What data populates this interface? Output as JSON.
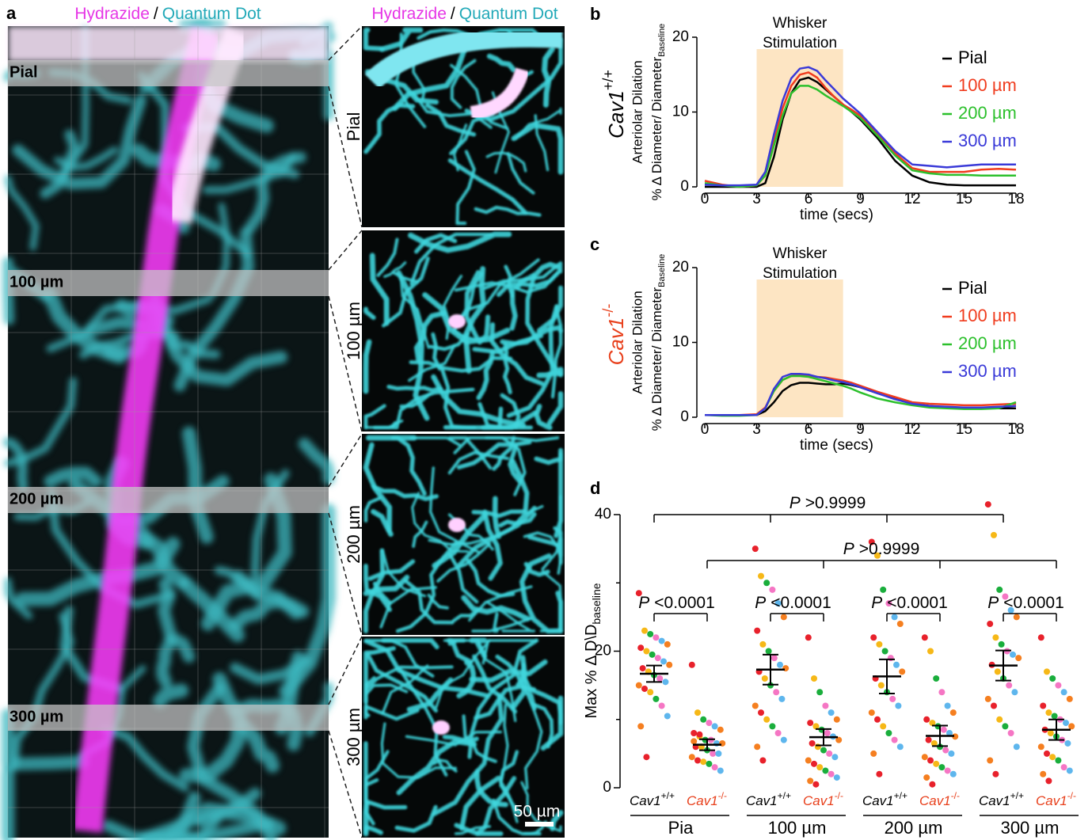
{
  "panel_a": {
    "label": "a",
    "headers": [
      {
        "left": "Hydrazide",
        "sep": "/",
        "right": "Quantum Dot"
      },
      {
        "left": "Hydrazide",
        "sep": "/",
        "right": "Quantum Dot"
      }
    ],
    "depths": [
      "Pial",
      "100 µm",
      "200 µm",
      "300 µm"
    ],
    "scale_bar": "50 µm"
  },
  "chart_data": [
    {
      "type": "line",
      "label": "b",
      "row_label": "Cav1",
      "row_sup": "+/+",
      "row_color": "#000000",
      "ylabel": [
        "Arteriolar Dilation",
        "% Δ Diameter/ Diameter"
      ],
      "ylabel_sub": "Baseline",
      "xlabel": "time (secs)",
      "stimulation": {
        "text": [
          "Whisker",
          "Stimulation"
        ],
        "start": 3,
        "end": 8,
        "color": "#fde5c3"
      },
      "xlim": [
        0,
        18
      ],
      "xticks": [
        0,
        3,
        6,
        9,
        12,
        15,
        18
      ],
      "ylim": [
        0,
        20
      ],
      "yticks": [
        0,
        10,
        20
      ],
      "x": [
        0,
        1,
        2,
        3,
        3.5,
        4,
        4.5,
        5,
        5.5,
        6,
        6.5,
        7,
        7.5,
        8,
        8.5,
        9,
        10,
        11,
        12,
        13,
        14,
        15,
        16,
        17,
        18
      ],
      "series": [
        {
          "name": "Pial",
          "color": "#000000",
          "values": [
            0,
            0,
            0,
            0,
            0.5,
            4,
            9,
            12.5,
            14.3,
            14.6,
            14,
            13,
            12,
            11,
            10,
            9,
            6.5,
            3.5,
            1.5,
            0.6,
            0.3,
            0.2,
            0.2,
            0.2,
            0.2
          ]
        },
        {
          "name": "100 µm",
          "color": "#f03c1e",
          "values": [
            0.8,
            0.3,
            0,
            0.2,
            1.5,
            6,
            10.5,
            13.5,
            15,
            15.3,
            14.6,
            13.2,
            12,
            11,
            10.3,
            9.5,
            7,
            4.5,
            2.5,
            2,
            2,
            2,
            2.3,
            2.4,
            2.3
          ]
        },
        {
          "name": "200 µm",
          "color": "#2cc02c",
          "values": [
            0.5,
            0.2,
            0,
            0.2,
            1.5,
            5.5,
            9.5,
            12.5,
            13.5,
            13.5,
            13,
            12.2,
            11.5,
            10.8,
            10,
            9.2,
            6.8,
            4.2,
            2.2,
            1.8,
            1.6,
            1.6,
            1.5,
            1.5,
            1.5
          ]
        },
        {
          "name": "300 µm",
          "color": "#3a3ad8",
          "values": [
            0.3,
            0.2,
            0.2,
            0.3,
            2,
            7,
            11.5,
            14.5,
            15.8,
            16,
            15.5,
            14.2,
            13,
            11.8,
            10.8,
            9.8,
            7.3,
            4.8,
            3,
            2.8,
            2.6,
            2.8,
            3,
            3,
            3
          ]
        }
      ]
    },
    {
      "type": "line",
      "label": "c",
      "row_label": "Cav1",
      "row_sup": "-/-",
      "row_color": "#e8401c",
      "ylabel": [
        "Arteriolar Dilation",
        "% Δ Diameter/ Diameter"
      ],
      "ylabel_sub": "Baseline",
      "xlabel": "time (secs)",
      "stimulation": {
        "text": [
          "Whisker",
          "Stimulation"
        ],
        "start": 3,
        "end": 8,
        "color": "#fde5c3"
      },
      "xlim": [
        0,
        18
      ],
      "xticks": [
        0,
        3,
        6,
        9,
        12,
        15,
        18
      ],
      "ylim": [
        0,
        20
      ],
      "yticks": [
        0,
        10,
        20
      ],
      "x": [
        0,
        1,
        2,
        3,
        3.5,
        4,
        4.5,
        5,
        5.5,
        6,
        6.5,
        7,
        7.5,
        8,
        8.5,
        9,
        10,
        11,
        12,
        13,
        14,
        15,
        16,
        17,
        18
      ],
      "series": [
        {
          "name": "Pial",
          "color": "#000000",
          "values": [
            0.3,
            0.3,
            0.3,
            0.3,
            0.8,
            2,
            3.5,
            4.3,
            4.6,
            4.6,
            4.5,
            4.4,
            4.4,
            4.5,
            4.3,
            4,
            3.2,
            2.5,
            1.8,
            1.5,
            1.3,
            1.2,
            1.2,
            1.2,
            1.2
          ]
        },
        {
          "name": "100 µm",
          "color": "#f03c1e",
          "values": [
            0.3,
            0.3,
            0.3,
            0.4,
            1.3,
            3.5,
            5,
            5.5,
            5.6,
            5.6,
            5.4,
            5.3,
            5.1,
            4.9,
            4.6,
            4.2,
            3.4,
            2.7,
            2,
            1.8,
            1.7,
            1.6,
            1.6,
            1.7,
            1.8
          ]
        },
        {
          "name": "200 µm",
          "color": "#2cc02c",
          "values": [
            0.3,
            0.2,
            0.2,
            0.3,
            1.2,
            3.5,
            5,
            5.5,
            5.5,
            5.4,
            5.1,
            4.8,
            4.5,
            4.2,
            3.8,
            3.3,
            2.5,
            2,
            1.6,
            1.3,
            1.2,
            1.1,
            1.1,
            1.2,
            2
          ]
        },
        {
          "name": "300 µm",
          "color": "#3a3ad8",
          "values": [
            0.3,
            0.3,
            0.3,
            0.3,
            1.2,
            3.8,
            5.4,
            5.8,
            5.8,
            5.7,
            5.4,
            5.2,
            4.9,
            4.7,
            4.4,
            4,
            3.2,
            2.4,
            1.8,
            1.5,
            1.4,
            1.3,
            1.3,
            1.4,
            1.5
          ]
        }
      ]
    },
    {
      "type": "scatter",
      "label": "d",
      "ylabel": "Max % Δ D\\D",
      "ylabel_sub": "baseline",
      "ylim": [
        0,
        40
      ],
      "yticks": [
        0,
        20,
        40
      ],
      "minor_yticks": [
        10,
        30
      ],
      "groups": [
        "Pia",
        "100 µm",
        "200 µm",
        "300 µm"
      ],
      "genotypes": [
        {
          "name": "Cav1",
          "sup": "+/+",
          "color": "#000000"
        },
        {
          "name": "Cav1",
          "sup": "-/-",
          "color": "#e8401c"
        }
      ],
      "palette": [
        "#e8212b",
        "#f6b817",
        "#1aae3c",
        "#f576c4",
        "#5eb6ed",
        "#f57f20"
      ],
      "points": [
        [
          28.5,
          23,
          22.5,
          22,
          21.5,
          21,
          20.5,
          20,
          19.5,
          19,
          18.5,
          18,
          17.5,
          17,
          16.5,
          16,
          15.5,
          15,
          14.5,
          14,
          13,
          12,
          10.5,
          9,
          4.5
        ],
        [
          18,
          11,
          10,
          9.5,
          9,
          8.5,
          8,
          7.5,
          7,
          7,
          6.5,
          6.5,
          6,
          6,
          5.5,
          5,
          5,
          4.5,
          4,
          3.8,
          3.5,
          3,
          2.5,
          6.8,
          7.8
        ],
        [
          35,
          31,
          30,
          29,
          27,
          25,
          23,
          21,
          20,
          19,
          18,
          17.5,
          17,
          16,
          15,
          14,
          13,
          12,
          11,
          10,
          9,
          8,
          7,
          6,
          4
        ],
        [
          22,
          16,
          14,
          12,
          11,
          10,
          9.5,
          9,
          8.5,
          8,
          7.5,
          7,
          6.5,
          6,
          5.5,
          5,
          4.5,
          4,
          3.5,
          3,
          2.5,
          2,
          1.5,
          1,
          0.5
        ],
        [
          36,
          34,
          29,
          27,
          25,
          24,
          22,
          21,
          20,
          19,
          18,
          17,
          16,
          15,
          14,
          13,
          12,
          11,
          10,
          9,
          8,
          7,
          6,
          5,
          2
        ],
        [
          22,
          20,
          16,
          14,
          12,
          11,
          10,
          9.5,
          9,
          8.5,
          8,
          7.5,
          7,
          6.5,
          6,
          5.5,
          5,
          4.5,
          4,
          3.5,
          3,
          2.5,
          2,
          1.5,
          0.5
        ],
        [
          41.5,
          37,
          29,
          28,
          26,
          25,
          24,
          22,
          21,
          20,
          19.5,
          19,
          18,
          17,
          16,
          15,
          14,
          13,
          12,
          10,
          9,
          8,
          6,
          4,
          2
        ],
        [
          22,
          17,
          16,
          15,
          14,
          13,
          12,
          11,
          10.5,
          10,
          9.5,
          9,
          8.5,
          8,
          7.5,
          7,
          6.5,
          6,
          5,
          4.5,
          4,
          3,
          2.5,
          2,
          1
        ]
      ],
      "mean": [
        16.7,
        6.3,
        17.3,
        7.4,
        16.3,
        7.6,
        17.9,
        8.5
      ],
      "error": [
        1.2,
        0.8,
        2.2,
        1.2,
        2.5,
        1.5,
        2.2,
        1.5
      ],
      "annotations": [
        {
          "p": "P",
          "text": ">0.9999"
        },
        {
          "p": "P",
          "text": ">0.9999"
        },
        {
          "p": "P",
          "text": "<0.0001"
        },
        {
          "p": "P",
          "text": "<0.0001"
        },
        {
          "p": "P",
          "text": "<0.0001"
        },
        {
          "p": "P",
          "text": "<0.0001"
        }
      ]
    }
  ]
}
